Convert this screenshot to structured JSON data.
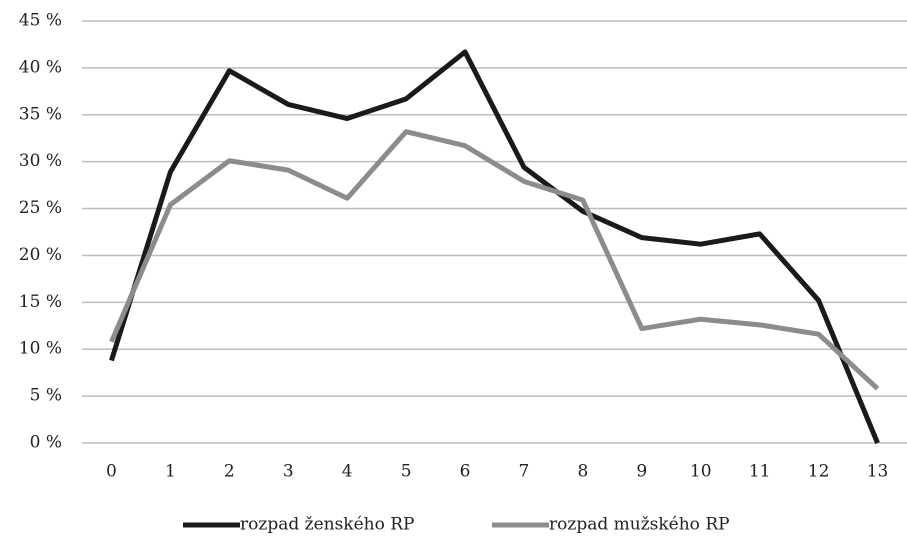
{
  "chart_data": {
    "type": "line",
    "categories": [
      "0",
      "1",
      "2",
      "3",
      "4",
      "5",
      "6",
      "7",
      "8",
      "9",
      "10",
      "11",
      "12",
      "13"
    ],
    "series": [
      {
        "name": "rozpad ženského RP",
        "color": "#1a1a1a",
        "values": [
          8.8,
          28.9,
          39.7,
          36.1,
          34.6,
          36.7,
          41.7,
          29.4,
          24.7,
          21.9,
          21.2,
          22.3,
          15.2,
          0
        ]
      },
      {
        "name": "rozpad mužského RP",
        "color": "#8c8c8c",
        "values": [
          10.8,
          25.4,
          30.1,
          29.1,
          26.1,
          33.2,
          31.7,
          27.9,
          25.9,
          12.2,
          13.2,
          12.6,
          11.6,
          5.8
        ]
      }
    ],
    "ylim": [
      0,
      45
    ],
    "yticks": [
      {
        "value": 0,
        "label": "0 %"
      },
      {
        "value": 5,
        "label": "5 %"
      },
      {
        "value": 10,
        "label": "10 %"
      },
      {
        "value": 15,
        "label": "15 %"
      },
      {
        "value": 20,
        "label": "20 %"
      },
      {
        "value": 25,
        "label": "25 %"
      },
      {
        "value": 30,
        "label": "30 %"
      },
      {
        "value": 35,
        "label": "35 %"
      },
      {
        "value": 40,
        "label": "40 %"
      },
      {
        "value": 45,
        "label": "45 %"
      }
    ],
    "grid": true,
    "legend": "bottom"
  }
}
